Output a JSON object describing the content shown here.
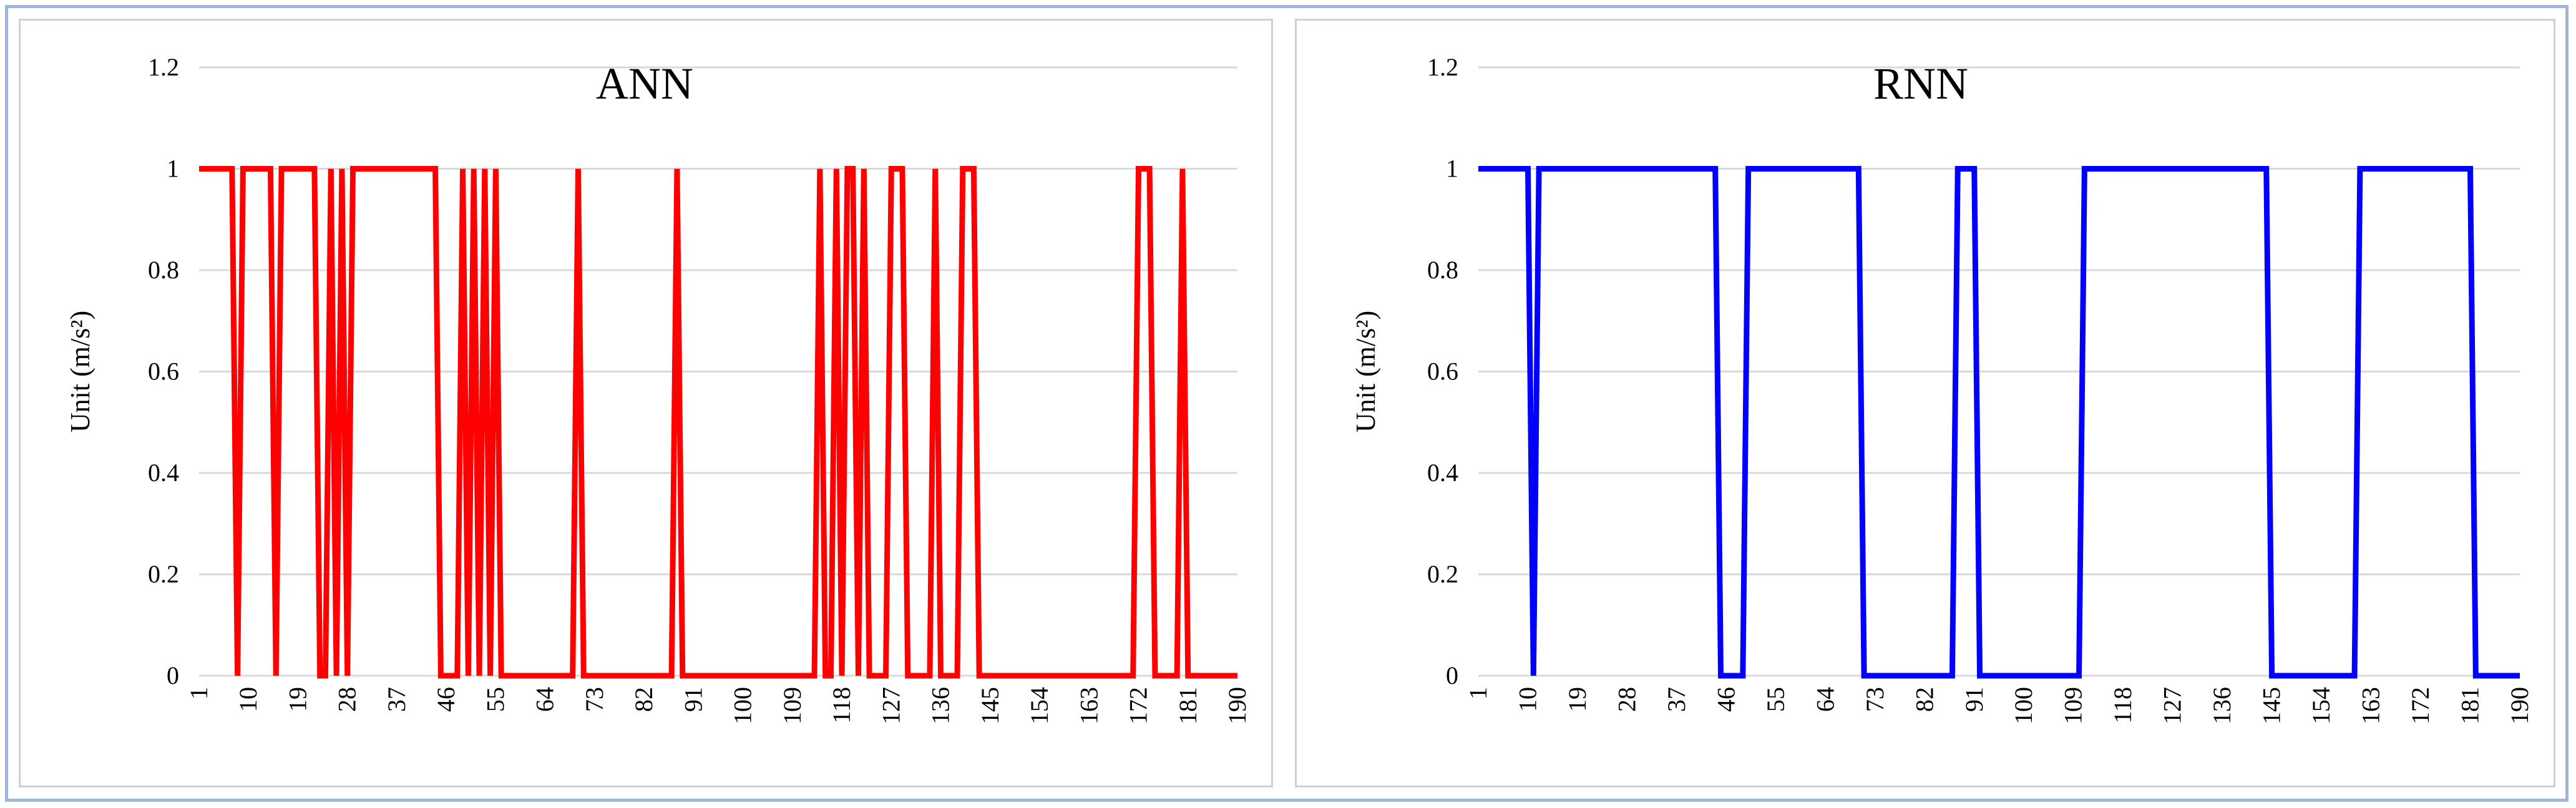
{
  "chart_data": [
    {
      "type": "line",
      "title": "ANN",
      "xlabel": "",
      "ylabel": "Unit (m/s²)",
      "line_color": "#ff0000",
      "xlim": [
        1,
        190
      ],
      "ylim": [
        0,
        1.2
      ],
      "yticks": [
        "0",
        "0.2",
        "0.4",
        "0.6",
        "0.8",
        "1",
        "1.2"
      ],
      "xtick_labels": [
        "1",
        "10",
        "19",
        "28",
        "37",
        "46",
        "55",
        "64",
        "73",
        "82",
        "91",
        "100",
        "109",
        "118",
        "127",
        "136",
        "145",
        "154",
        "163",
        "172",
        "181",
        "190"
      ],
      "grid": true,
      "legend": "none",
      "series": [
        {
          "zero_intervals": [
            [
              8,
              8
            ],
            [
              15,
              15
            ],
            [
              23,
              24
            ],
            [
              26,
              26
            ],
            [
              28,
              28
            ],
            [
              45,
              48
            ],
            [
              50,
              50
            ],
            [
              52,
              52
            ],
            [
              54,
              54
            ],
            [
              56,
              69
            ],
            [
              71,
              87
            ],
            [
              89,
              113
            ],
            [
              115,
              116
            ],
            [
              118,
              118
            ],
            [
              121,
              121
            ],
            [
              123,
              126
            ],
            [
              130,
              134
            ],
            [
              136,
              139
            ],
            [
              143,
              171
            ],
            [
              175,
              179
            ],
            [
              181,
              190
            ]
          ]
        }
      ]
    },
    {
      "type": "line",
      "title": "RNN",
      "xlabel": "",
      "ylabel": "Unit (m/s²)",
      "line_color": "#0000ff",
      "xlim": [
        1,
        190
      ],
      "ylim": [
        0,
        1.2
      ],
      "yticks": [
        "0",
        "0.2",
        "0.4",
        "0.6",
        "0.8",
        "1",
        "1.2"
      ],
      "xtick_labels": [
        "1",
        "10",
        "19",
        "28",
        "37",
        "46",
        "55",
        "64",
        "73",
        "82",
        "91",
        "100",
        "109",
        "118",
        "127",
        "136",
        "145",
        "154",
        "163",
        "172",
        "181",
        "190"
      ],
      "grid": true,
      "legend": "none",
      "series": [
        {
          "zero_intervals": [
            [
              11,
              11
            ],
            [
              45,
              49
            ],
            [
              71,
              87
            ],
            [
              92,
              110
            ],
            [
              145,
              160
            ],
            [
              182,
              190
            ]
          ]
        }
      ]
    }
  ]
}
